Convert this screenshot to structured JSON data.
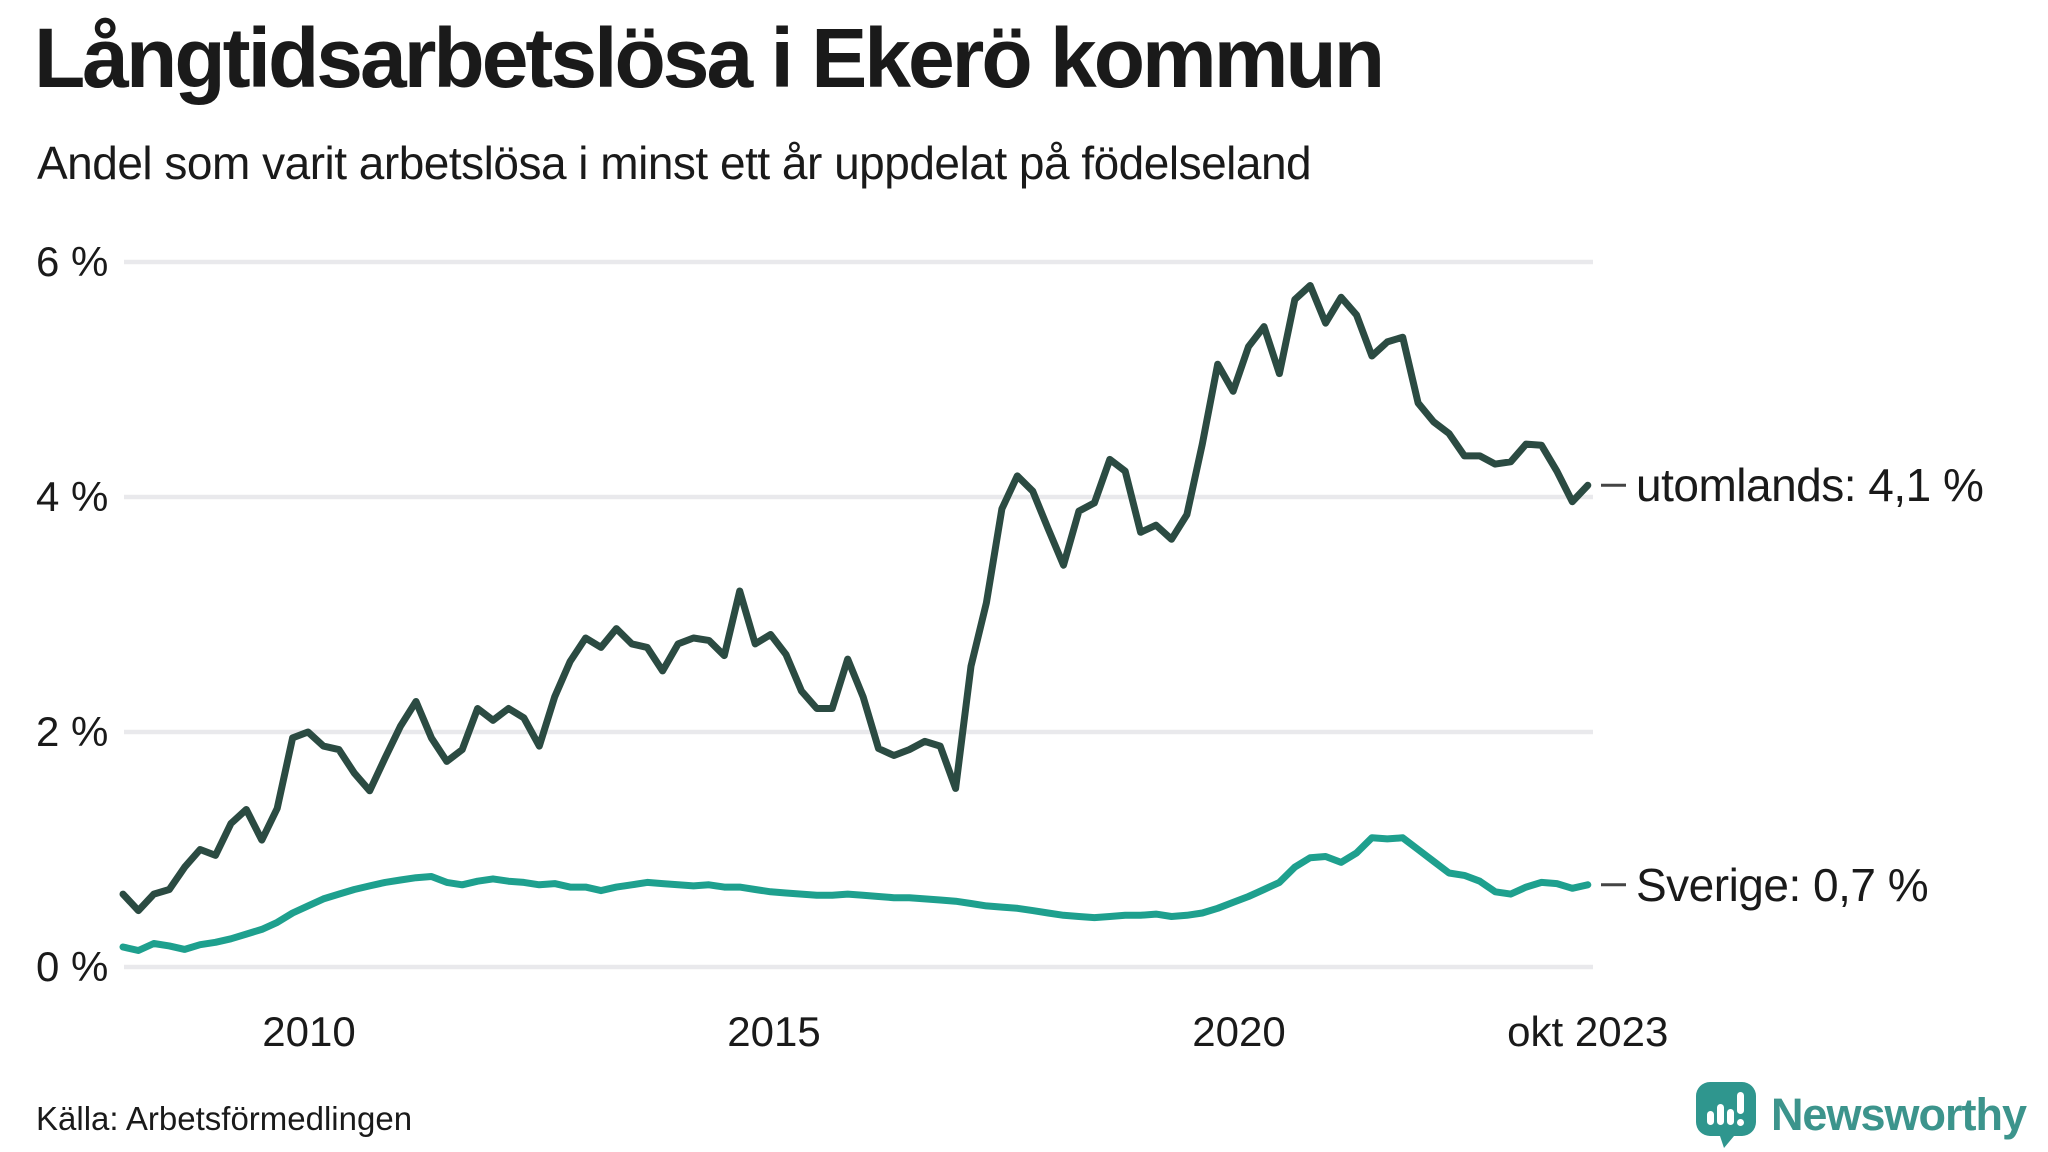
{
  "header": {
    "title": "Långtidsarbetslösa i Ekerö kommun",
    "subtitle": "Andel som varit arbetslösa i minst ett år uppdelat på födelseland"
  },
  "footer": {
    "source": "Källa: Arbetsförmedlingen",
    "logo_text": "Newsworthy"
  },
  "colors": {
    "utomlands_line": "#2B4B42",
    "sverige_line": "#1EA08E",
    "gridline": "#E9E9EC",
    "text": "#1A1A1A",
    "leader_dash": "#444444",
    "logo_teal": "#3C948C",
    "logo_icon": "#2F968E"
  },
  "chart_data": {
    "type": "line",
    "title": "Långtidsarbetslösa i Ekerö kommun",
    "subtitle": "Andel som varit arbetslösa i minst ett år uppdelat på födelseland",
    "unit": "%",
    "x_start": 2008.0,
    "x_end": 2023.75,
    "x_end_label": "okt 2023",
    "ylim": [
      0,
      6.3
    ],
    "grid": true,
    "legend_position": "right-end-labels",
    "x_axis_ticks": [
      {
        "label": "2010",
        "year": 2010
      },
      {
        "label": "2015",
        "year": 2015
      },
      {
        "label": "2020",
        "year": 2020
      },
      {
        "label": "okt 2023",
        "year": 2023.75
      }
    ],
    "y_axis_ticks": [
      {
        "label": "0 %",
        "value": 0
      },
      {
        "label": "2 %",
        "value": 2
      },
      {
        "label": "4 %",
        "value": 4
      },
      {
        "label": "6 %",
        "value": 6
      }
    ],
    "series": [
      {
        "name": "utomlands",
        "label": "utomlands: 4,1 %",
        "end_value": 4.1,
        "color": "#2B4B42",
        "values": [
          0.62,
          0.48,
          0.62,
          0.66,
          0.85,
          1.0,
          0.95,
          1.22,
          1.34,
          1.08,
          1.35,
          1.95,
          2.0,
          1.88,
          1.85,
          1.65,
          1.5,
          1.78,
          2.05,
          2.26,
          1.95,
          1.75,
          1.85,
          2.2,
          2.1,
          2.2,
          2.12,
          1.88,
          2.3,
          2.6,
          2.8,
          2.72,
          2.88,
          2.75,
          2.72,
          2.52,
          2.75,
          2.8,
          2.78,
          2.65,
          3.2,
          2.75,
          2.83,
          2.66,
          2.35,
          2.2,
          2.2,
          2.62,
          2.3,
          1.86,
          1.8,
          1.85,
          1.92,
          1.88,
          1.52,
          2.56,
          3.1,
          3.9,
          4.18,
          4.05,
          3.73,
          3.42,
          3.88,
          3.95,
          4.32,
          4.22,
          3.7,
          3.76,
          3.64,
          3.85,
          4.45,
          5.13,
          4.9,
          5.28,
          5.45,
          5.05,
          5.68,
          5.8,
          5.48,
          5.7,
          5.55,
          5.2,
          5.32,
          5.36,
          4.8,
          4.64,
          4.54,
          4.35,
          4.35,
          4.28,
          4.3,
          4.45,
          4.44,
          4.22,
          3.96,
          4.1
        ]
      },
      {
        "name": "Sverige",
        "label": "Sverige: 0,7 %",
        "end_value": 0.7,
        "color": "#1EA08E",
        "values": [
          0.17,
          0.14,
          0.2,
          0.18,
          0.15,
          0.19,
          0.21,
          0.24,
          0.28,
          0.32,
          0.38,
          0.46,
          0.52,
          0.58,
          0.62,
          0.66,
          0.69,
          0.72,
          0.74,
          0.76,
          0.77,
          0.72,
          0.7,
          0.73,
          0.75,
          0.73,
          0.72,
          0.7,
          0.71,
          0.68,
          0.68,
          0.65,
          0.68,
          0.7,
          0.72,
          0.71,
          0.7,
          0.69,
          0.7,
          0.68,
          0.68,
          0.66,
          0.64,
          0.63,
          0.62,
          0.61,
          0.61,
          0.62,
          0.61,
          0.6,
          0.59,
          0.59,
          0.58,
          0.57,
          0.56,
          0.54,
          0.52,
          0.51,
          0.5,
          0.48,
          0.46,
          0.44,
          0.43,
          0.42,
          0.43,
          0.44,
          0.44,
          0.45,
          0.43,
          0.44,
          0.46,
          0.5,
          0.55,
          0.6,
          0.66,
          0.72,
          0.85,
          0.93,
          0.94,
          0.89,
          0.97,
          1.1,
          1.09,
          1.1,
          1.0,
          0.9,
          0.8,
          0.78,
          0.73,
          0.64,
          0.62,
          0.68,
          0.72,
          0.71,
          0.67,
          0.7
        ]
      }
    ]
  }
}
